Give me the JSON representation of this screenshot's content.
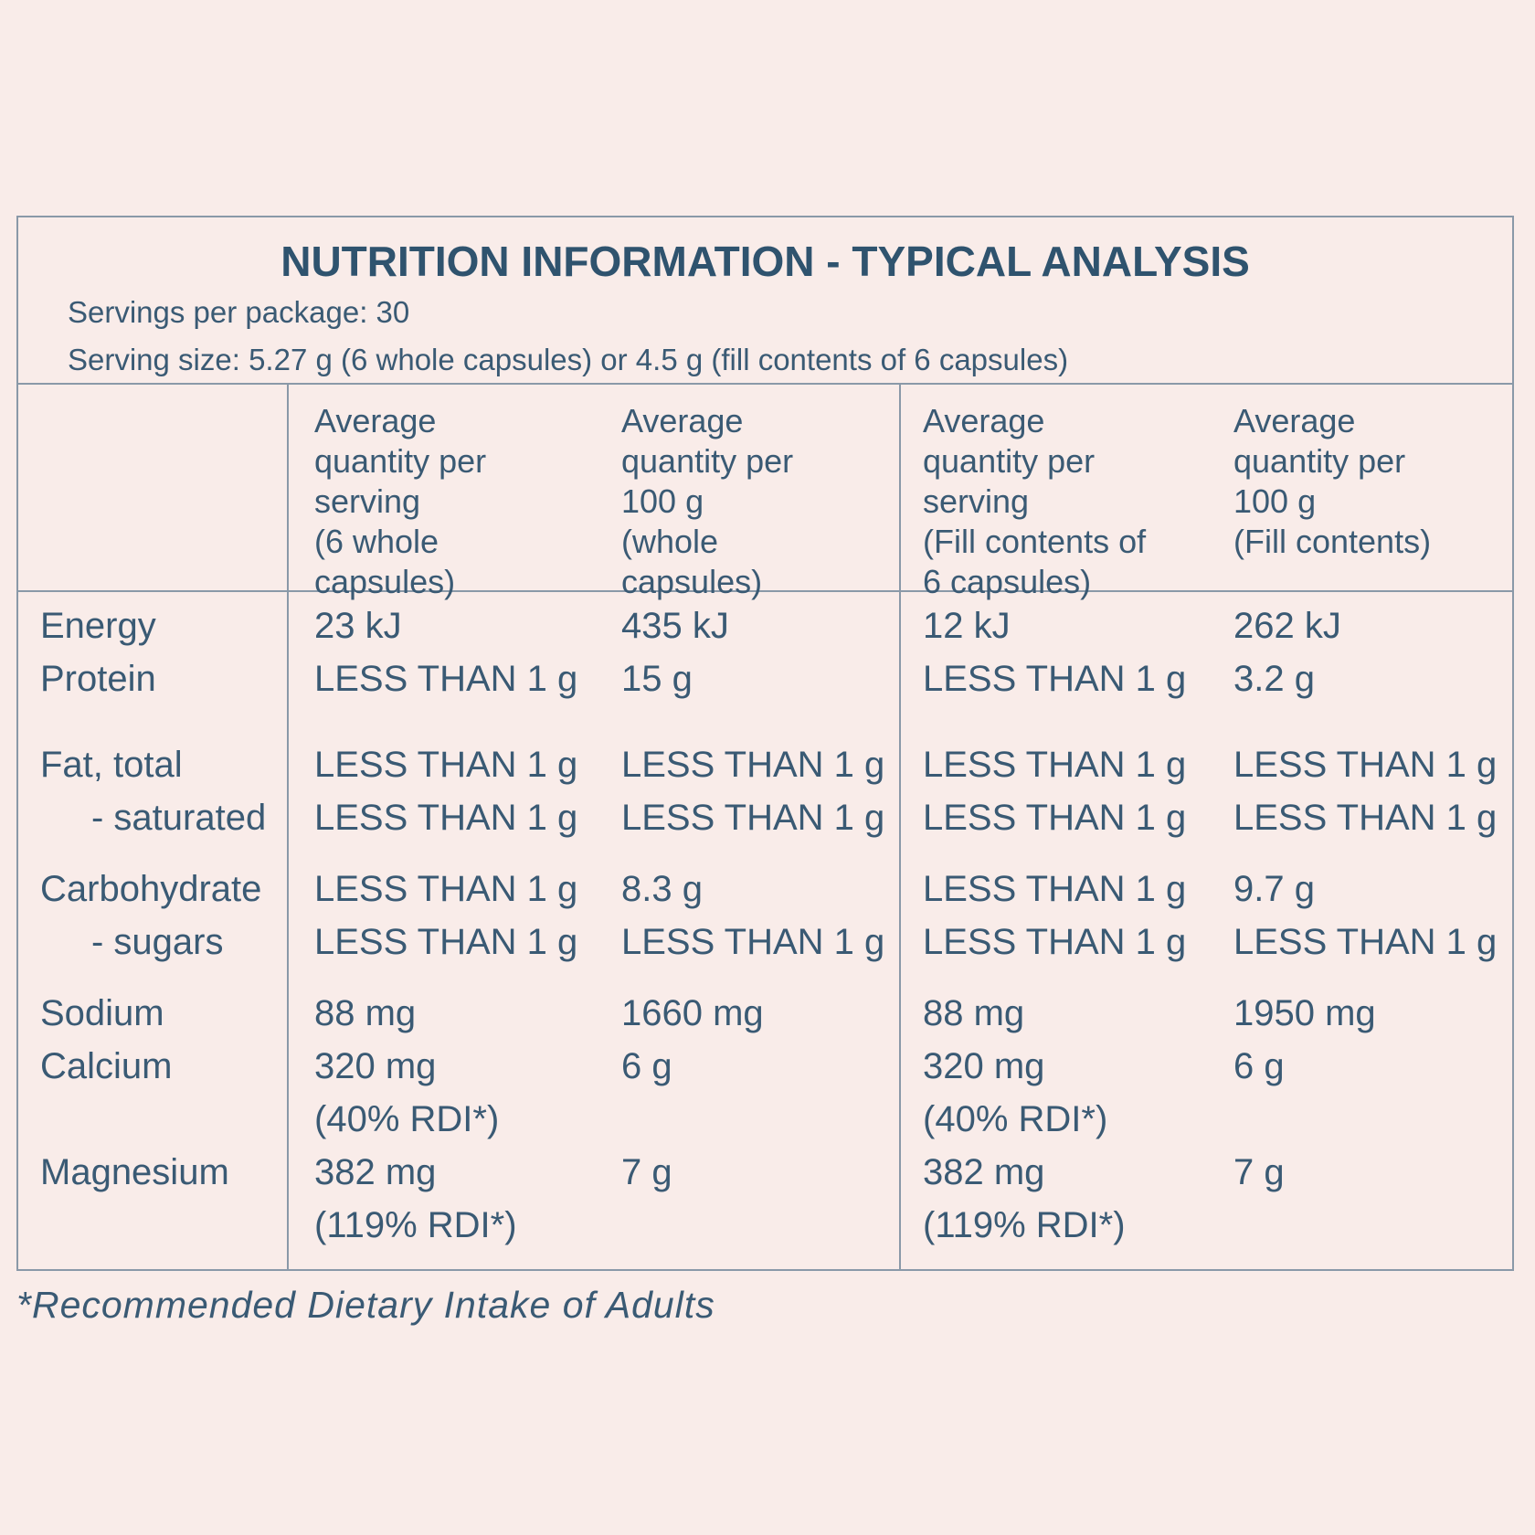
{
  "title": "NUTRITION INFORMATION - TYPICAL ANALYSIS",
  "serving_info": {
    "servings_per_package": "Servings per package: 30",
    "serving_size": "Serving size: 5.27 g (6 whole capsules) or 4.5 g (fill contents of 6 capsules)"
  },
  "column_headers": [
    {
      "lines": [
        "Average",
        "quantity per",
        "serving",
        "(6 whole",
        "capsules)"
      ]
    },
    {
      "lines": [
        "Average",
        "quantity per",
        "100 g",
        "(whole",
        "capsules)"
      ]
    },
    {
      "lines": [
        "Average",
        "quantity per",
        "serving",
        "(Fill contents of",
        "6 capsules)"
      ]
    },
    {
      "lines": [
        "Average",
        "quantity per",
        "100 g",
        "(Fill contents)"
      ]
    }
  ],
  "rows": [
    {
      "label": "Energy",
      "values": [
        "23 kJ",
        "435 kJ",
        "12 kJ",
        "262 kJ"
      ]
    },
    {
      "label": "Protein",
      "values": [
        "LESS THAN 1 g",
        "15 g",
        "LESS THAN 1 g",
        "3.2 g"
      ]
    },
    {
      "label": "Fat, total",
      "values": [
        "LESS THAN 1 g",
        "LESS THAN 1 g",
        "LESS THAN 1 g",
        "LESS THAN 1 g"
      ]
    },
    {
      "label": "- saturated",
      "values": [
        "LESS THAN 1 g",
        "LESS THAN 1 g",
        "LESS THAN 1 g",
        "LESS THAN 1 g"
      ]
    },
    {
      "label": "Carbohydrate",
      "values": [
        "LESS THAN 1 g",
        "8.3 g",
        "LESS THAN 1 g",
        "9.7 g"
      ]
    },
    {
      "label": "- sugars",
      "values": [
        "LESS THAN 1 g",
        "LESS THAN 1 g",
        "LESS THAN 1 g",
        "LESS THAN 1 g"
      ]
    },
    {
      "label": "Sodium",
      "values": [
        "88 mg",
        "1660 mg",
        "88 mg",
        "1950 mg"
      ]
    },
    {
      "label": "Calcium",
      "values": [
        "320 mg",
        "6 g",
        "320 mg",
        "6 g"
      ]
    },
    {
      "label": "",
      "values": [
        "(40% RDI*)",
        "",
        "(40% RDI*)",
        ""
      ]
    },
    {
      "label": "Magnesium",
      "values": [
        "382 mg",
        "7 g",
        "382 mg",
        "7 g"
      ]
    },
    {
      "label": "",
      "values": [
        "(119% RDI*)",
        "",
        "(119% RDI*)",
        ""
      ]
    }
  ],
  "footnote": "*Recommended Dietary Intake of Adults",
  "colors": {
    "background": "#f9ece9",
    "text": "#3a5a74",
    "title": "#2f536e",
    "border": "#8a99a8"
  }
}
